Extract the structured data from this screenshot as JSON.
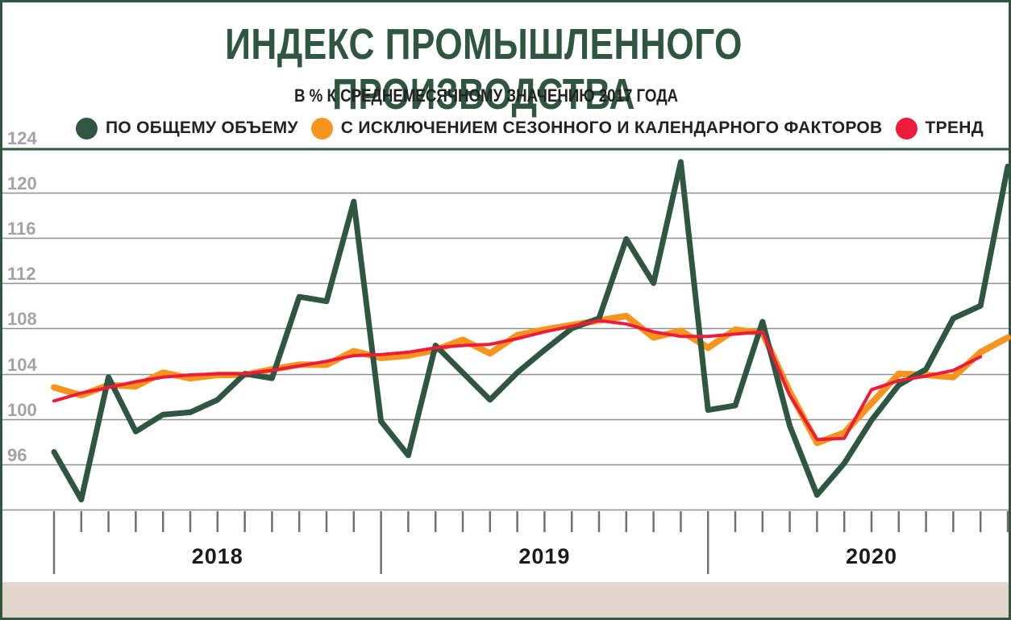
{
  "chart_data": {
    "type": "line",
    "title": "ИНДЕКС ПРОМЫШЛЕННОГО ПРОИЗВОДСТВА",
    "subtitle": "В % К СРЕДНЕМЕСЯЧНОМУ ЗНАЧЕНИЮ 2017 ГОДА",
    "xlabel": "",
    "ylabel": "",
    "ylim": [
      92,
      124
    ],
    "yticks": [
      96,
      100,
      104,
      108,
      112,
      116,
      120,
      124
    ],
    "grid": true,
    "legend_position": "top",
    "years": [
      "2018",
      "2019",
      "2020"
    ],
    "x": [
      "2018-01",
      "2018-02",
      "2018-03",
      "2018-04",
      "2018-05",
      "2018-06",
      "2018-07",
      "2018-08",
      "2018-09",
      "2018-10",
      "2018-11",
      "2018-12",
      "2019-01",
      "2019-02",
      "2019-03",
      "2019-04",
      "2019-05",
      "2019-06",
      "2019-07",
      "2019-08",
      "2019-09",
      "2019-10",
      "2019-11",
      "2019-12",
      "2020-01",
      "2020-02",
      "2020-03",
      "2020-04",
      "2020-05",
      "2020-06",
      "2020-07",
      "2020-08",
      "2020-09",
      "2020-10",
      "2020-11",
      "2020-12"
    ],
    "series": [
      {
        "name": "ПО ОБЩЕМУ ОБЪЕМУ",
        "color": "#2f5641",
        "values": [
          97.1,
          92.9,
          103.7,
          98.9,
          100.4,
          100.6,
          101.7,
          104.0,
          103.6,
          110.8,
          110.4,
          119.2,
          99.8,
          96.8,
          106.5,
          104.1,
          101.7,
          104.1,
          106.1,
          108.0,
          108.9,
          115.9,
          112.0,
          122.7,
          100.8,
          101.2,
          108.6,
          99.4,
          93.3,
          96.1,
          99.9,
          103.0,
          104.4,
          108.9,
          110.0,
          122.3
        ]
      },
      {
        "name": "С ИСКЛЮЧЕНИЕМ СЕЗОННОГО И КАЛЕНДАРНОГО ФАКТОРОВ",
        "color": "#f7941d",
        "values": [
          102.8,
          102.1,
          103.0,
          102.9,
          104.1,
          103.6,
          103.9,
          103.9,
          104.4,
          104.8,
          104.8,
          106.0,
          105.4,
          105.6,
          106.1,
          107.0,
          105.8,
          107.4,
          107.9,
          108.3,
          108.7,
          109.1,
          107.2,
          107.8,
          106.3,
          107.9,
          107.6,
          102.4,
          97.9,
          98.8,
          101.4,
          104.0,
          103.9,
          103.7,
          105.9,
          107.2
        ]
      },
      {
        "name": "ТРЕНД",
        "color": "#ed1c3b",
        "values": [
          101.6,
          102.3,
          102.8,
          103.3,
          103.7,
          103.9,
          104.0,
          104.0,
          104.3,
          104.7,
          105.1,
          105.6,
          105.7,
          105.9,
          106.3,
          106.5,
          106.6,
          107.1,
          107.7,
          108.2,
          108.7,
          108.4,
          107.7,
          107.3,
          107.3,
          107.5,
          107.7,
          102.1,
          98.2,
          98.3,
          102.6,
          103.4,
          103.8,
          104.3,
          105.5,
          null
        ]
      }
    ]
  }
}
